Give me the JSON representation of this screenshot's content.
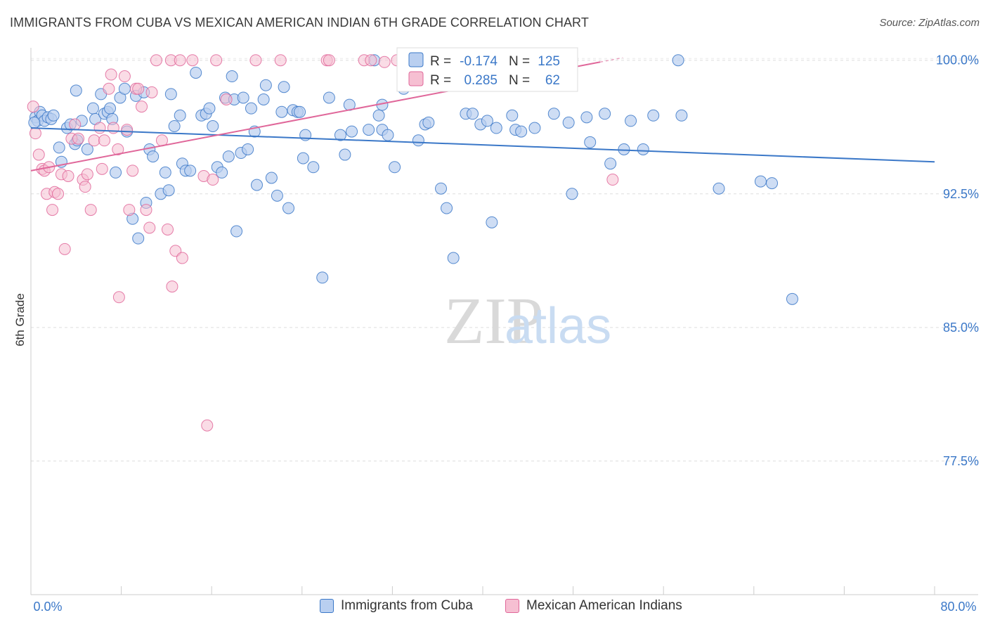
{
  "title": "IMMIGRANTS FROM CUBA VS MEXICAN AMERICAN INDIAN 6TH GRADE CORRELATION CHART",
  "source": "Source: ZipAtlas.com",
  "watermark": {
    "zip": "ZIP",
    "atlas": "atlas"
  },
  "colors": {
    "blue": "#3b78c8",
    "blue_fill": "#b9cff0",
    "pink": "#e0679a",
    "pink_fill": "#f6bfd2",
    "grid": "#dddddd",
    "axis_text": "#3b78c8"
  },
  "legend": {
    "rows": [
      {
        "r_label": "R =",
        "r_value": "-0.174",
        "n_label": "N =",
        "n_value": "125"
      },
      {
        "r_label": "R =",
        "r_value": "0.285",
        "n_label": "N =",
        "n_value": "62"
      }
    ]
  },
  "bottom_legend": {
    "series1": "Immigrants from Cuba",
    "series2": "Mexican American Indians"
  },
  "chart_data": {
    "type": "scatter",
    "xlabel": "",
    "ylabel": "6th Grade",
    "xlim": [
      0,
      80
    ],
    "ylim": [
      70,
      100.7
    ],
    "x_tick_labels": [
      "0.0%",
      "80.0%"
    ],
    "y_tick_labels": [
      "100.0%",
      "92.5%",
      "85.0%",
      "77.5%"
    ],
    "y_ticks": [
      100,
      92.5,
      85,
      77.5
    ],
    "grid": true,
    "legend_position": "top-center",
    "series": [
      {
        "name": "Immigrants from Cuba",
        "color": "#3b78c8",
        "trend": {
          "x": [
            0,
            80
          ],
          "y": [
            96.2,
            94.3
          ]
        },
        "points": [
          [
            0.4,
            96.8
          ],
          [
            0.6,
            96.6
          ],
          [
            0.8,
            97.1
          ],
          [
            1.0,
            96.9
          ],
          [
            1.2,
            96.6
          ],
          [
            1.5,
            96.8
          ],
          [
            1.8,
            96.7
          ],
          [
            2.0,
            96.9
          ],
          [
            2.5,
            95.1
          ],
          [
            2.7,
            94.3
          ],
          [
            3.2,
            96.2
          ],
          [
            3.5,
            96.4
          ],
          [
            3.9,
            95.3
          ],
          [
            4.1,
            95.5
          ],
          [
            4.5,
            96.6
          ],
          [
            5.0,
            95.0
          ],
          [
            5.5,
            97.3
          ],
          [
            5.7,
            96.7
          ],
          [
            6.2,
            98.1
          ],
          [
            6.5,
            97.0
          ],
          [
            6.8,
            97.1
          ],
          [
            7.0,
            97.3
          ],
          [
            7.2,
            96.7
          ],
          [
            7.5,
            93.7
          ],
          [
            7.9,
            97.9
          ],
          [
            8.3,
            98.4
          ],
          [
            8.5,
            96.0
          ],
          [
            9.0,
            91.1
          ],
          [
            9.3,
            98.0
          ],
          [
            9.5,
            90.0
          ],
          [
            10.0,
            98.2
          ],
          [
            10.2,
            92.0
          ],
          [
            10.5,
            95.0
          ],
          [
            10.8,
            94.6
          ],
          [
            11.5,
            92.5
          ],
          [
            11.9,
            93.7
          ],
          [
            12.2,
            92.7
          ],
          [
            12.4,
            98.1
          ],
          [
            12.7,
            96.3
          ],
          [
            13.2,
            96.9
          ],
          [
            13.4,
            94.2
          ],
          [
            13.7,
            93.8
          ],
          [
            14.1,
            93.8
          ],
          [
            14.6,
            99.3
          ],
          [
            15.1,
            96.9
          ],
          [
            15.5,
            97.0
          ],
          [
            15.8,
            97.3
          ],
          [
            16.1,
            96.3
          ],
          [
            16.5,
            94.0
          ],
          [
            16.9,
            93.7
          ],
          [
            17.2,
            97.9
          ],
          [
            17.5,
            94.6
          ],
          [
            17.8,
            99.1
          ],
          [
            18.0,
            97.8
          ],
          [
            18.2,
            90.4
          ],
          [
            18.6,
            94.8
          ],
          [
            18.8,
            97.9
          ],
          [
            19.2,
            95.0
          ],
          [
            19.5,
            97.3
          ],
          [
            19.8,
            96.0
          ],
          [
            20.0,
            93.0
          ],
          [
            20.6,
            97.8
          ],
          [
            20.8,
            98.6
          ],
          [
            21.3,
            93.4
          ],
          [
            21.8,
            92.4
          ],
          [
            22.2,
            97.1
          ],
          [
            22.4,
            98.5
          ],
          [
            22.8,
            91.7
          ],
          [
            23.2,
            97.2
          ],
          [
            23.6,
            97.1
          ],
          [
            23.8,
            97.1
          ],
          [
            24.1,
            94.5
          ],
          [
            24.3,
            95.8
          ],
          [
            25.0,
            94.0
          ],
          [
            25.8,
            87.8
          ],
          [
            26.4,
            97.9
          ],
          [
            27.4,
            95.8
          ],
          [
            27.8,
            94.7
          ],
          [
            28.2,
            97.5
          ],
          [
            28.4,
            96.0
          ],
          [
            29.9,
            96.1
          ],
          [
            30.4,
            100.0
          ],
          [
            30.8,
            96.9
          ],
          [
            31.1,
            97.5
          ],
          [
            31.1,
            96.1
          ],
          [
            31.6,
            95.8
          ],
          [
            32.2,
            94.0
          ],
          [
            33.0,
            98.4
          ],
          [
            34.3,
            95.5
          ],
          [
            34.9,
            96.4
          ],
          [
            35.2,
            96.5
          ],
          [
            36.3,
            92.8
          ],
          [
            36.8,
            91.7
          ],
          [
            37.4,
            88.9
          ],
          [
            38.5,
            97.0
          ],
          [
            39.1,
            97.0
          ],
          [
            39.8,
            96.4
          ],
          [
            40.4,
            96.6
          ],
          [
            40.8,
            90.9
          ],
          [
            41.2,
            96.2
          ],
          [
            42.6,
            96.9
          ],
          [
            42.9,
            96.1
          ],
          [
            43.4,
            96.0
          ],
          [
            44.6,
            96.2
          ],
          [
            46.3,
            97.0
          ],
          [
            47.6,
            96.5
          ],
          [
            47.9,
            92.5
          ],
          [
            49.2,
            96.8
          ],
          [
            49.5,
            95.4
          ],
          [
            50.8,
            97.0
          ],
          [
            51.3,
            94.2
          ],
          [
            52.5,
            95.0
          ],
          [
            53.1,
            96.6
          ],
          [
            54.2,
            95.0
          ],
          [
            55.1,
            96.9
          ],
          [
            57.3,
            100.0
          ],
          [
            57.6,
            96.9
          ],
          [
            60.9,
            92.8
          ],
          [
            64.6,
            93.2
          ],
          [
            65.6,
            93.1
          ],
          [
            67.4,
            86.6
          ],
          [
            0.3,
            96.5
          ],
          [
            4.0,
            98.3
          ]
        ]
      },
      {
        "name": "Mexican American Indians",
        "color": "#e0679a",
        "trend": {
          "x": [
            0,
            50.4
          ],
          "y": [
            93.8,
            99.9
          ]
        },
        "points": [
          [
            0.2,
            97.4
          ],
          [
            0.4,
            95.9
          ],
          [
            0.7,
            94.7
          ],
          [
            1.0,
            93.9
          ],
          [
            1.2,
            93.8
          ],
          [
            1.4,
            92.5
          ],
          [
            1.6,
            94.0
          ],
          [
            1.9,
            91.6
          ],
          [
            2.1,
            92.6
          ],
          [
            2.4,
            92.5
          ],
          [
            2.7,
            93.6
          ],
          [
            3.0,
            89.4
          ],
          [
            3.3,
            93.5
          ],
          [
            3.6,
            95.6
          ],
          [
            3.9,
            96.4
          ],
          [
            4.2,
            95.6
          ],
          [
            4.6,
            93.3
          ],
          [
            4.8,
            92.9
          ],
          [
            5.0,
            93.6
          ],
          [
            5.3,
            91.6
          ],
          [
            5.6,
            95.5
          ],
          [
            6.1,
            96.2
          ],
          [
            6.3,
            93.9
          ],
          [
            6.5,
            95.5
          ],
          [
            6.9,
            98.4
          ],
          [
            7.1,
            99.2
          ],
          [
            7.3,
            96.2
          ],
          [
            7.7,
            95.0
          ],
          [
            7.8,
            86.7
          ],
          [
            8.3,
            99.1
          ],
          [
            8.7,
            91.6
          ],
          [
            9.0,
            93.8
          ],
          [
            9.3,
            98.4
          ],
          [
            9.5,
            98.4
          ],
          [
            9.8,
            97.4
          ],
          [
            10.2,
            91.6
          ],
          [
            10.5,
            90.6
          ],
          [
            10.7,
            98.2
          ],
          [
            11.1,
            100.0
          ],
          [
            11.6,
            95.5
          ],
          [
            12.1,
            90.5
          ],
          [
            12.4,
            100.0
          ],
          [
            12.5,
            87.3
          ],
          [
            12.8,
            89.3
          ],
          [
            13.2,
            100.0
          ],
          [
            13.4,
            88.9
          ],
          [
            14.3,
            100.0
          ],
          [
            15.3,
            93.5
          ],
          [
            15.6,
            79.5
          ],
          [
            16.1,
            93.3
          ],
          [
            16.4,
            100.0
          ],
          [
            17.3,
            97.8
          ],
          [
            19.9,
            100.0
          ],
          [
            22.1,
            100.0
          ],
          [
            26.2,
            100.0
          ],
          [
            26.4,
            100.0
          ],
          [
            29.5,
            100.0
          ],
          [
            30.1,
            100.0
          ],
          [
            31.3,
            99.9
          ],
          [
            32.4,
            100.0
          ],
          [
            51.5,
            93.3
          ],
          [
            8.5,
            96.1
          ]
        ]
      }
    ]
  }
}
